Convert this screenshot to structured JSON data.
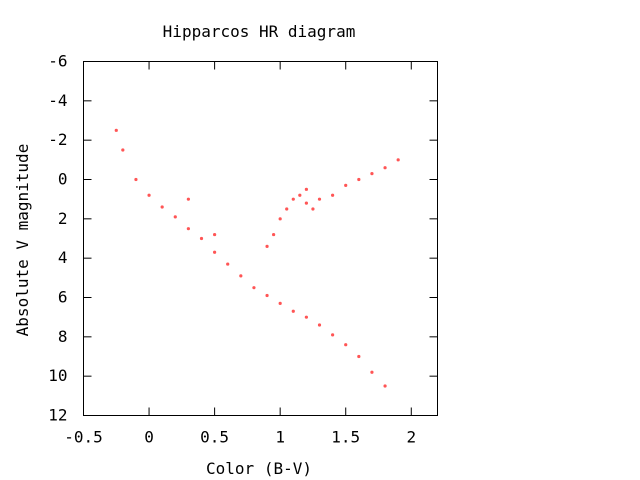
{
  "chart_data": {
    "type": "scatter",
    "title": "Hipparcos HR diagram",
    "xlabel": "Color (B-V)",
    "ylabel": "Absolute V magnitude",
    "xlim": [
      -0.5,
      2.2
    ],
    "ylim": [
      12,
      -6
    ],
    "y_inverted": true,
    "x_ticks": [
      -0.5,
      0,
      0.5,
      1,
      1.5,
      2
    ],
    "x_tick_labels": [
      "-0.5",
      "0",
      "0.5",
      "1",
      "1.5",
      "2"
    ],
    "y_ticks": [
      -6,
      -4,
      -2,
      0,
      2,
      4,
      6,
      8,
      10,
      12
    ],
    "y_tick_labels": [
      "-6",
      "-4",
      "-2",
      "0",
      "2",
      "4",
      "6",
      "8",
      "10",
      "12"
    ],
    "grid": false,
    "legend": "none",
    "point_color": "#ff5555",
    "series": [
      {
        "values": [
          {
            "bv": -0.2,
            "mag": -1.5
          },
          {
            "bv": -0.1,
            "mag": 0.0
          },
          {
            "bv": 0.0,
            "mag": 0.8
          },
          {
            "bv": 0.1,
            "mag": 1.4
          },
          {
            "bv": 0.2,
            "mag": 1.9
          },
          {
            "bv": 0.3,
            "mag": 2.5
          },
          {
            "bv": 0.4,
            "mag": 3.0
          },
          {
            "bv": 0.5,
            "mag": 3.7
          },
          {
            "bv": 0.6,
            "mag": 4.3
          },
          {
            "bv": 0.7,
            "mag": 4.9
          },
          {
            "bv": 0.8,
            "mag": 5.5
          },
          {
            "bv": 0.9,
            "mag": 5.9
          },
          {
            "bv": 1.0,
            "mag": 6.3
          },
          {
            "bv": 1.1,
            "mag": 6.7
          },
          {
            "bv": 1.2,
            "mag": 7.0
          },
          {
            "bv": 1.3,
            "mag": 7.4
          },
          {
            "bv": 1.4,
            "mag": 7.9
          },
          {
            "bv": 1.5,
            "mag": 8.4
          },
          {
            "bv": 1.6,
            "mag": 9.0
          },
          {
            "bv": 1.7,
            "mag": 9.8
          },
          {
            "bv": 0.9,
            "mag": 3.4
          },
          {
            "bv": 0.95,
            "mag": 2.8
          },
          {
            "bv": 1.0,
            "mag": 2.0
          },
          {
            "bv": 1.05,
            "mag": 1.5
          },
          {
            "bv": 1.1,
            "mag": 1.0
          },
          {
            "bv": 1.15,
            "mag": 0.8
          },
          {
            "bv": 1.2,
            "mag": 1.2
          },
          {
            "bv": 1.25,
            "mag": 1.5
          },
          {
            "bv": 1.3,
            "mag": 1.0
          },
          {
            "bv": 1.4,
            "mag": 0.8
          },
          {
            "bv": 1.5,
            "mag": 0.3
          },
          {
            "bv": 1.6,
            "mag": 0.0
          },
          {
            "bv": 1.7,
            "mag": -0.3
          },
          {
            "bv": 1.8,
            "mag": -0.6
          },
          {
            "bv": 1.9,
            "mag": -1.0
          },
          {
            "bv": -0.25,
            "mag": -2.5
          },
          {
            "bv": 0.3,
            "mag": 1.0
          },
          {
            "bv": 0.5,
            "mag": 2.8
          },
          {
            "bv": 1.2,
            "mag": 0.5
          },
          {
            "bv": 1.8,
            "mag": 10.5
          }
        ]
      }
    ]
  }
}
